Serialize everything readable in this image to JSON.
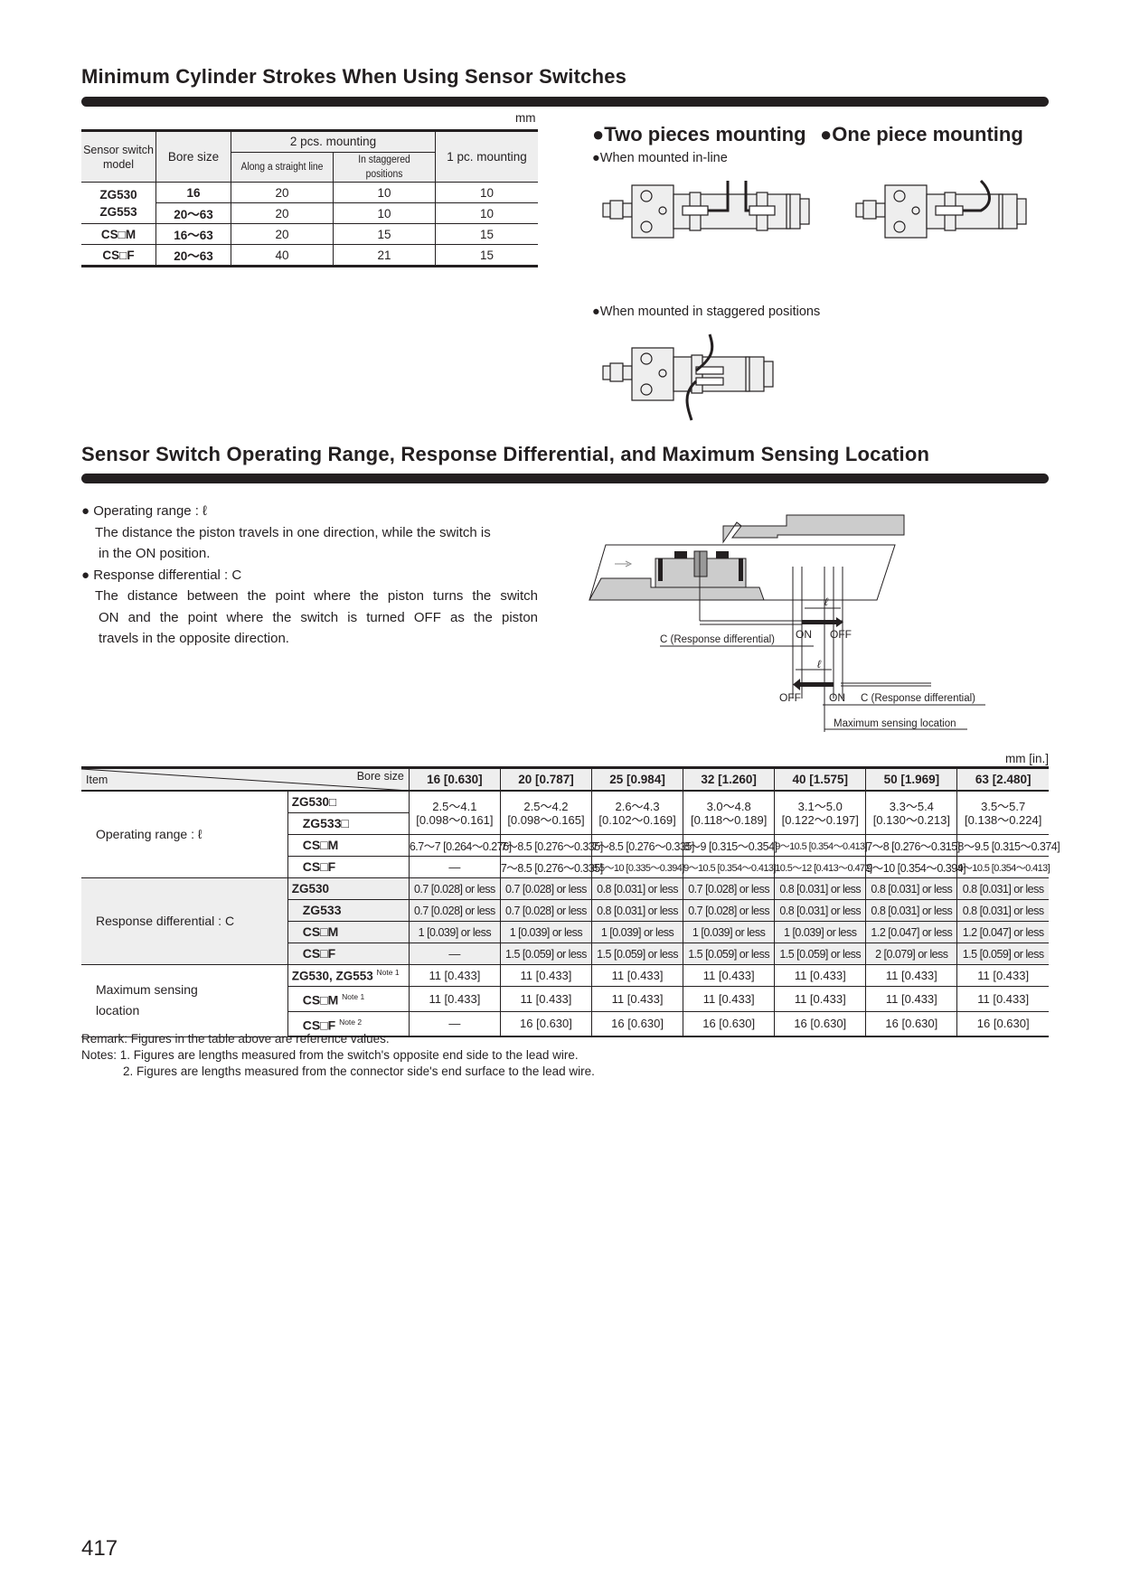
{
  "section1": {
    "title": "Minimum Cylinder Strokes When Using Sensor Switches",
    "unit": "mm",
    "table": {
      "headers": {
        "model": "Sensor switch model",
        "bore": "Bore size",
        "two_pcs": "2 pcs. mounting",
        "straight": "Along a straight line",
        "staggered": "In staggered positions",
        "one_pc": "1 pc. mounting"
      },
      "zg_models": "ZG530\nZG553",
      "rows": [
        {
          "model": "",
          "bore": "16",
          "straight": "20",
          "staggered": "10",
          "one": "10"
        },
        {
          "model": "",
          "bore": "20～63",
          "straight": "20",
          "staggered": "10",
          "one": "10"
        },
        {
          "model": "CS□M",
          "bore": "16～63",
          "straight": "20",
          "staggered": "15",
          "one": "15"
        },
        {
          "model": "CS□F",
          "bore": "20～63",
          "straight": "40",
          "staggered": "21",
          "one": "15"
        }
      ]
    },
    "two_pieces_label": "Two pieces mounting",
    "one_piece_label": "One piece mounting",
    "inline_label": "When mounted in-line",
    "staggered_label": "When mounted in staggered positions"
  },
  "section2": {
    "title": "Sensor Switch Operating Range, Response Differential, and Maximum Sensing Location",
    "bullets": [
      {
        "term": "Operating range : ℓ",
        "desc": [
          "The distance the piston travels in one direction, while the switch is",
          "in the ON position."
        ]
      },
      {
        "term": "Response differential : C",
        "desc": [
          "The distance between the point where the piston turns the switch",
          "ON and the point where the switch is turned OFF as the piston",
          "travels in the opposite direction."
        ]
      }
    ],
    "diagram": {
      "l": "ℓ",
      "on": "ON",
      "off": "OFF",
      "c_label": "C (Response differential)",
      "max_label": "Maximum sensing location"
    },
    "unit": "mm [in.]",
    "table": {
      "item_label": "Item",
      "bore_label": "Bore size",
      "bores": [
        "16 [0.630]",
        "20 [0.787]",
        "25 [0.984]",
        "32 [1.260]",
        "40 [1.575]",
        "50 [1.969]",
        "63 [2.480]"
      ],
      "operating": {
        "label": "Operating range :  ℓ",
        "zg_models": [
          "ZG530□",
          "ZG533□"
        ],
        "zg_values": [
          [
            "2.5～4.1",
            "[0.098～0.161]"
          ],
          [
            "2.5～4.2",
            "[0.098～0.165]"
          ],
          [
            "2.6～4.3",
            "[0.102～0.169]"
          ],
          [
            "3.0～4.8",
            "[0.118～0.189]"
          ],
          [
            "3.1～5.0",
            "[0.122～0.197]"
          ],
          [
            "3.3～5.4",
            "[0.130～0.213]"
          ],
          [
            "3.5～5.7",
            "[0.138～0.224]"
          ]
        ],
        "rows": [
          {
            "model": "CS□M",
            "values": [
              "6.7～7 [0.264～0.276]",
              "7～8.5 [0.276～0.335]",
              "7～8.5 [0.276～0.335]",
              "8～9 [0.315～0.354]",
              "9～10.5 [0.354～0.413]",
              "7～8 [0.276～0.315]",
              "8～9.5 [0.315～0.374]"
            ]
          },
          {
            "model": "CS□F",
            "values": [
              "—",
              "7～8.5 [0.276～0.335]",
              "8.5～10 [0.335～0.394]",
              "9～10.5 [0.354～0.413]",
              "10.5～12 [0.413～0.472]",
              "9～10 [0.354～0.394]",
              "9～10.5 [0.354～0.413]"
            ]
          }
        ]
      },
      "response": {
        "label": "Response differential : C",
        "rows": [
          {
            "model": "ZG530",
            "values": [
              "0.7 [0.028] or less",
              "0.7 [0.028] or less",
              "0.8 [0.031] or less",
              "0.7 [0.028] or less",
              "0.8 [0.031] or less",
              "0.8 [0.031] or less",
              "0.8 [0.031] or less"
            ]
          },
          {
            "model": "ZG533",
            "values": [
              "0.7 [0.028] or less",
              "0.7 [0.028] or less",
              "0.8 [0.031] or less",
              "0.7 [0.028] or less",
              "0.8 [0.031] or less",
              "0.8 [0.031] or less",
              "0.8 [0.031] or less"
            ]
          },
          {
            "model": "CS□M",
            "values": [
              "1 [0.039] or less",
              "1 [0.039] or less",
              "1 [0.039] or less",
              "1 [0.039] or less",
              "1 [0.039] or less",
              "1.2 [0.047] or less",
              "1.2 [0.047] or less"
            ]
          },
          {
            "model": "CS□F",
            "values": [
              "—",
              "1.5 [0.059] or less",
              "1.5 [0.059] or less",
              "1.5 [0.059] or less",
              "1.5 [0.059] or less",
              "2 [0.079] or less",
              "1.5 [0.059] or less"
            ]
          }
        ]
      },
      "max_sensing": {
        "label": [
          "Maximum sensing",
          "location"
        ],
        "rows": [
          {
            "model": "ZG530, ZG553",
            "note": "Note 1",
            "values": [
              "11 [0.433]",
              "11 [0.433]",
              "11 [0.433]",
              "11 [0.433]",
              "11 [0.433]",
              "11 [0.433]",
              "11 [0.433]"
            ]
          },
          {
            "model": "CS□M",
            "note": "Note 1",
            "values": [
              "11 [0.433]",
              "11 [0.433]",
              "11 [0.433]",
              "11 [0.433]",
              "11 [0.433]",
              "11 [0.433]",
              "11 [0.433]"
            ]
          },
          {
            "model": "CS□F",
            "note": "Note 2",
            "values": [
              "—",
              "16 [0.630]",
              "16 [0.630]",
              "16 [0.630]",
              "16 [0.630]",
              "16 [0.630]",
              "16 [0.630]"
            ]
          }
        ]
      }
    },
    "remark": "Remark: Figures in the table above are reference values.",
    "notes": [
      "Notes: 1. Figures are lengths measured from the switch's opposite end side to the lead wire.",
      "2. Figures are lengths measured from the connector side's end surface to the lead wire."
    ]
  },
  "page_number": "417"
}
